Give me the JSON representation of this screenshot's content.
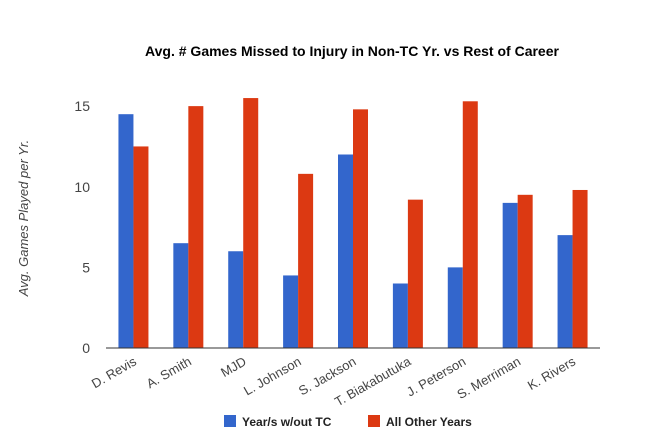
{
  "chart_data": {
    "type": "bar",
    "title": "Avg. # Games Missed to Injury in Non-TC Yr. vs Rest of Career",
    "xlabel": "",
    "ylabel": "Avg. Games Played per Yr.",
    "categories": [
      "D. Revis",
      "A. Smith",
      "MJD",
      "L. Johnson",
      "S. Jackson",
      "T. Biakabutuka",
      "J. Peterson",
      "S. Merriman",
      "K. Rivers"
    ],
    "series": [
      {
        "name": "Year/s w/out TC",
        "color": "#3366cc",
        "values": [
          14.5,
          6.5,
          6.0,
          4.5,
          12.0,
          4.0,
          5.0,
          9.0,
          7.0
        ]
      },
      {
        "name": "All Other Years",
        "color": "#dc3912",
        "values": [
          12.5,
          15.0,
          15.5,
          10.8,
          14.8,
          9.2,
          15.3,
          9.5,
          9.8
        ]
      }
    ],
    "ylim": [
      0,
      16
    ],
    "yticks": [
      0,
      5,
      10,
      15
    ],
    "grid": false,
    "legend": "bottom",
    "axis_color": "#333333",
    "text_color": "#444444"
  }
}
